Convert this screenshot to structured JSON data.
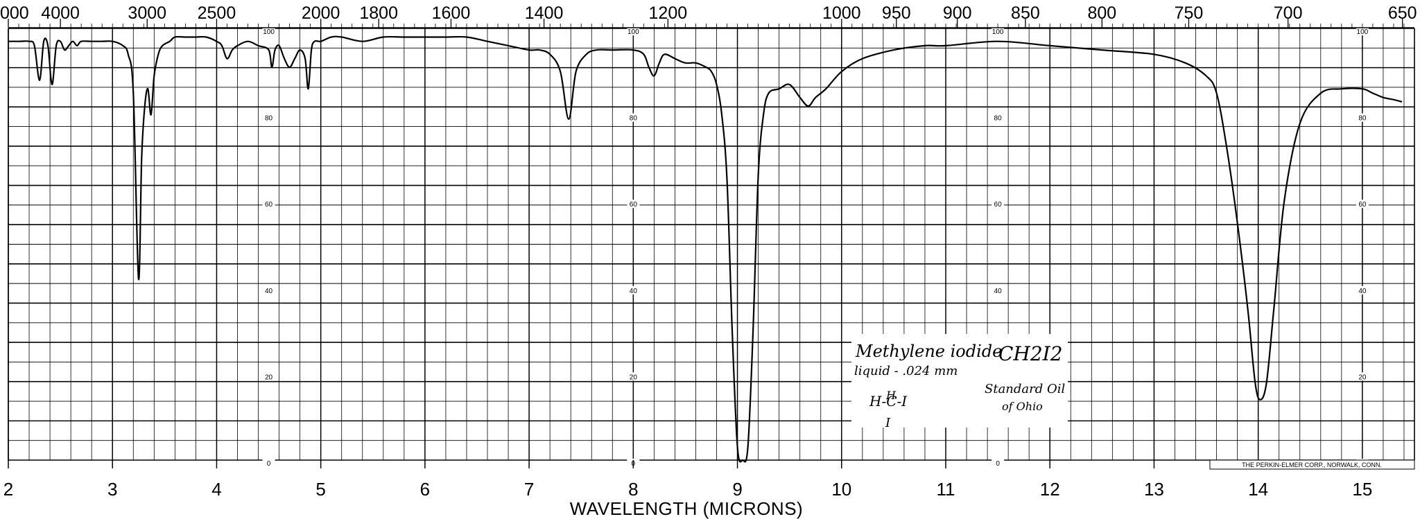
{
  "chart_data": {
    "type": "line",
    "xlabel": "WAVELENGTH (MICRONS)",
    "xlim": [
      2,
      15.5
    ],
    "ylim": [
      0,
      100
    ],
    "x_ticks": [
      2,
      3,
      4,
      5,
      6,
      7,
      8,
      9,
      10,
      11,
      12,
      13,
      14,
      15
    ],
    "top_axis_ticks": [
      {
        "label": "000",
        "wavelength": 2.0
      },
      {
        "label": "4000",
        "wavelength": 2.5
      },
      {
        "label": "3000",
        "wavelength": 3.333
      },
      {
        "label": "2500",
        "wavelength": 4.0
      },
      {
        "label": "2000",
        "wavelength": 5.0
      },
      {
        "label": "1800",
        "wavelength": 5.556
      },
      {
        "label": "1600",
        "wavelength": 6.25
      },
      {
        "label": "1400",
        "wavelength": 7.143
      },
      {
        "label": "1200",
        "wavelength": 8.333
      },
      {
        "label": "1000",
        "wavelength": 10.0
      },
      {
        "label": "950",
        "wavelength": 10.526
      },
      {
        "label": "900",
        "wavelength": 11.111
      },
      {
        "label": "850",
        "wavelength": 11.765
      },
      {
        "label": "800",
        "wavelength": 12.5
      },
      {
        "label": "750",
        "wavelength": 13.333
      },
      {
        "label": "700",
        "wavelength": 14.286
      },
      {
        "label": "650",
        "wavelength": 15.385
      }
    ],
    "inner_scale_labels": [
      "100",
      "80",
      "60",
      "40",
      "20",
      "0"
    ],
    "inner_scale_values": [
      100,
      80,
      60,
      40,
      20,
      0
    ],
    "inner_scale_positions": [
      4.5,
      8.0,
      11.5,
      15.0
    ],
    "grid": true,
    "series": [
      {
        "x": [
          2.0,
          2.1,
          2.2,
          2.25,
          2.3,
          2.34,
          2.38,
          2.42,
          2.46,
          2.5,
          2.54,
          2.58,
          2.62,
          2.66,
          2.7,
          2.8,
          2.9,
          3.0,
          3.1,
          3.15,
          3.2,
          3.25,
          3.28,
          3.31,
          3.34,
          3.37,
          3.4,
          3.44,
          3.48,
          3.55,
          3.6,
          3.7,
          3.8,
          3.9,
          4.0,
          4.05,
          4.1,
          4.15,
          4.2,
          4.3,
          4.4,
          4.5,
          4.53,
          4.56,
          4.6,
          4.65,
          4.7,
          4.75,
          4.8,
          4.85,
          4.88,
          4.91,
          4.94,
          5.0,
          5.1,
          5.2,
          5.4,
          5.6,
          5.8,
          6.0,
          6.2,
          6.4,
          6.6,
          6.8,
          7.0,
          7.1,
          7.2,
          7.3,
          7.38,
          7.45,
          7.55,
          7.65,
          7.8,
          8.0,
          8.1,
          8.15,
          8.2,
          8.25,
          8.3,
          8.4,
          8.5,
          8.6,
          8.7,
          8.75,
          8.8,
          8.85,
          8.9,
          8.95,
          9.0,
          9.05,
          9.1,
          9.15,
          9.2,
          9.25,
          9.3,
          9.4,
          9.5,
          9.6,
          9.68,
          9.75,
          9.85,
          10.0,
          10.2,
          10.5,
          10.8,
          11.0,
          11.5,
          12.0,
          12.5,
          13.0,
          13.3,
          13.5,
          13.6,
          13.7,
          13.8,
          13.9,
          13.97,
          14.02,
          14.08,
          14.15,
          14.25,
          14.4,
          14.6,
          14.8,
          15.0,
          15.1,
          15.2,
          15.3,
          15.38
        ],
        "y": [
          97,
          97,
          97,
          96,
          88,
          97,
          96,
          87,
          96,
          97,
          95,
          96,
          97,
          96,
          97,
          97,
          97,
          97,
          96,
          94,
          85,
          42,
          70,
          82,
          86,
          80,
          89,
          94,
          96,
          97,
          98,
          98,
          98,
          98,
          97,
          96,
          93,
          95,
          96,
          97,
          96,
          95,
          91,
          95,
          96,
          93,
          91,
          93,
          95,
          93,
          86,
          95,
          97,
          97,
          98,
          98,
          97,
          98,
          98,
          98,
          98,
          98,
          97,
          96,
          95,
          95,
          94,
          90,
          79,
          90,
          94,
          95,
          95,
          95,
          94,
          91,
          89,
          92,
          94,
          93,
          92,
          92,
          91,
          90,
          87,
          80,
          65,
          30,
          3,
          0,
          3,
          30,
          66,
          80,
          85,
          86,
          87,
          84,
          82,
          84,
          86,
          90,
          93,
          95,
          96,
          96,
          97,
          96,
          95,
          94,
          92,
          89,
          85,
          72,
          55,
          35,
          18,
          14,
          18,
          35,
          60,
          78,
          85,
          86,
          86,
          85,
          84,
          83.5,
          83
        ]
      }
    ],
    "annotations": [
      "Methylene iodide",
      "CH2I2",
      "liquid - .024 mm",
      "Standard Oil",
      "of Ohio",
      "H",
      "H-C-I",
      "I"
    ],
    "credit": "THE PERKIN-ELMER CORP., NORWALK, CONN."
  }
}
